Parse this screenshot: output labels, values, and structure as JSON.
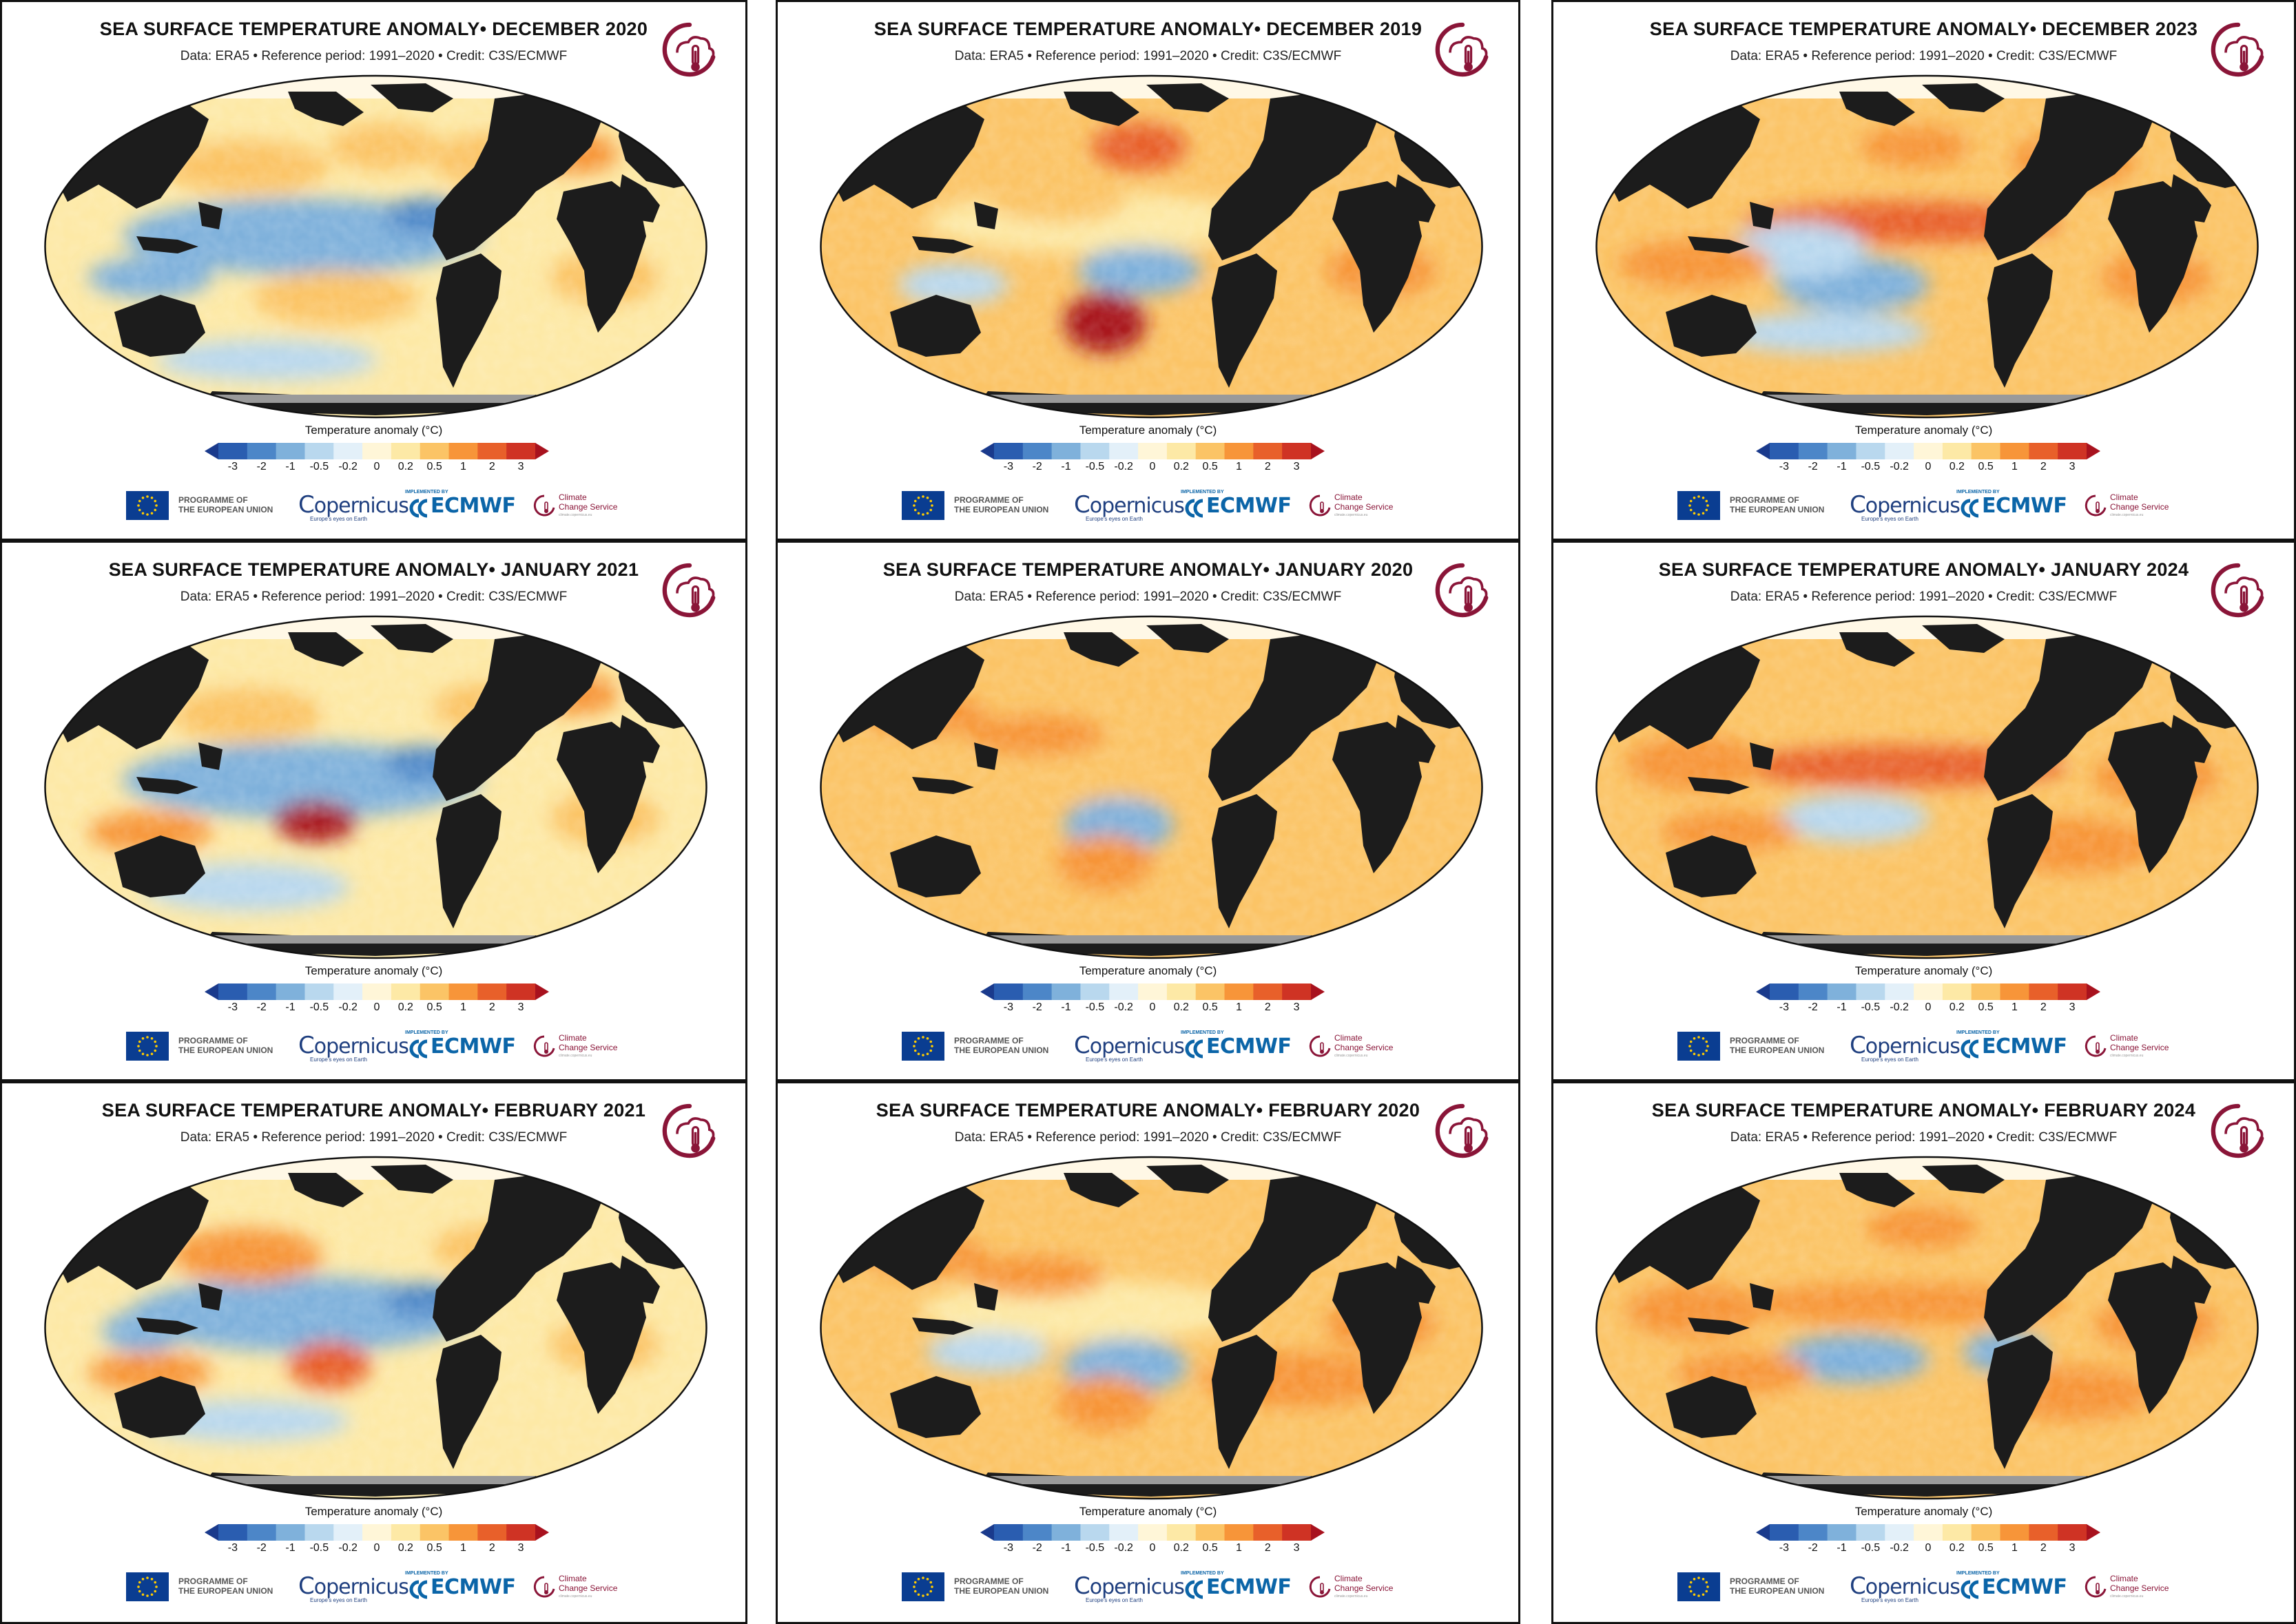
{
  "panels": [
    {
      "title": "SEA SURFACE TEMPERATURE ANOMALY• DECEMBER 2020",
      "pattern": "lanina_mod"
    },
    {
      "title": "SEA SURFACE TEMPERATURE ANOMALY• DECEMBER 2019",
      "pattern": "neutral_warm"
    },
    {
      "title": "SEA SURFACE TEMPERATURE ANOMALY• DECEMBER 2023",
      "pattern": "elnino"
    },
    {
      "title": "SEA SURFACE TEMPERATURE ANOMALY• JANUARY 2021",
      "pattern": "lanina_strong"
    },
    {
      "title": "SEA SURFACE TEMPERATURE ANOMALY• JANUARY 2020",
      "pattern": "neutral_warm2"
    },
    {
      "title": "SEA SURFACE TEMPERATURE ANOMALY• JANUARY 2024",
      "pattern": "elnino2"
    },
    {
      "title": "SEA SURFACE TEMPERATURE ANOMALY• FEBRUARY 2021",
      "pattern": "lanina_feb"
    },
    {
      "title": "SEA SURFACE TEMPERATURE ANOMALY• FEBRUARY 2020",
      "pattern": "neutral_warm3"
    },
    {
      "title": "SEA SURFACE TEMPERATURE ANOMALY• FEBRUARY 2024",
      "pattern": "elnino3"
    }
  ],
  "subtitle": "Data: ERA5 • Reference period: 1991–2020 • Credit: C3S/ECMWF",
  "colorbar": {
    "title": "Temperature anomaly (°C)",
    "ticks": [
      "-3",
      "-2",
      "-1",
      "-0.5",
      "-0.2",
      "0",
      "0.2",
      "0.5",
      "1",
      "2",
      "3"
    ],
    "colors": [
      "#1a3a8c",
      "#2a5db0",
      "#4c86c8",
      "#7fb1db",
      "#b9d8ee",
      "#e3f0f9",
      "#fff6d8",
      "#fde9a6",
      "#fbc466",
      "#f79539",
      "#e8602a",
      "#cf3324",
      "#a8121e"
    ]
  },
  "footer": {
    "eu_line1": "PROGRAMME OF",
    "eu_line2": "THE EUROPEAN UNION",
    "copernicus": "opernicus",
    "copernicus_sub": "Europe's eyes on Earth",
    "implemented_by": "IMPLEMENTED BY",
    "ecmwf": "ECMWF",
    "ccs_line1": "Climate",
    "ccs_line2": "Change Service",
    "ccs_sub": "climate.copernicus.eu"
  },
  "colors": {
    "land": "#1c1c1c",
    "border": "#111111",
    "accent": "#8a1538",
    "ecmwf": "#0b65a8"
  }
}
